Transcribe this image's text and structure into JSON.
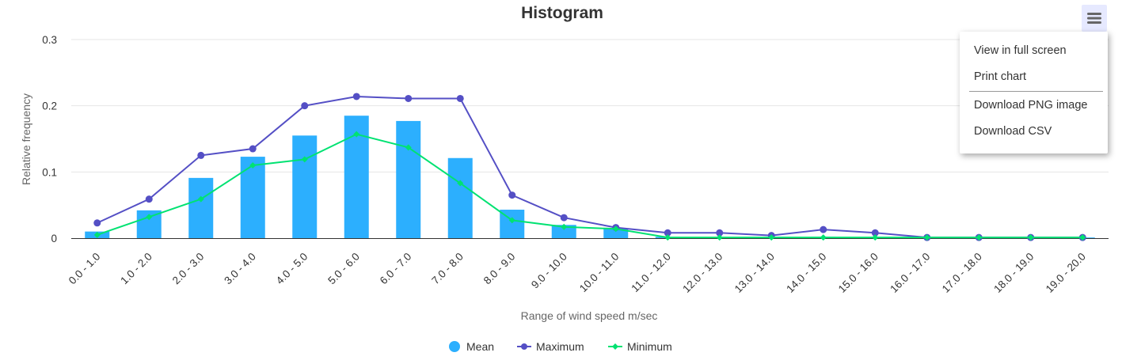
{
  "chart_data": {
    "type": "bar",
    "title": "Histogram",
    "xlabel": "Range of wind speed m/sec",
    "ylabel": "Relative frequency",
    "ylim": [
      0,
      0.3
    ],
    "yticks": [
      0,
      0.1,
      0.2,
      0.3
    ],
    "ytick_labels": [
      "0",
      "0.1",
      "0.2",
      "0.3"
    ],
    "grid": true,
    "legend_position": "bottom-center",
    "categories": [
      "0.0 - 1.0",
      "1.0 - 2.0",
      "2.0 - 3.0",
      "3.0 - 4.0",
      "4.0 - 5.0",
      "5.0 - 6.0",
      "6.0 - 7.0",
      "7.0 - 8.0",
      "8.0 - 9.0",
      "9.0 - 10.0",
      "10.0 - 11.0",
      "11.0 - 12.0",
      "12.0 - 13.0",
      "13.0 - 14.0",
      "14.0 - 15.0",
      "15.0 - 16.0",
      "16.0 - 17.0",
      "17.0 - 18.0",
      "18.0 - 19.0",
      "19.0 - 20.0"
    ],
    "series": [
      {
        "name": "Mean",
        "type": "bar",
        "color": "#2caffe",
        "values": [
          0.01,
          0.042,
          0.091,
          0.123,
          0.155,
          0.185,
          0.177,
          0.121,
          0.043,
          0.02,
          0.014,
          0.002,
          0.001,
          0.001,
          0.002,
          0.001,
          0.001,
          0.001,
          0.001,
          0.001
        ]
      },
      {
        "name": "Maximum",
        "type": "line",
        "marker": "circle",
        "color": "#544fc5",
        "values": [
          0.023,
          0.059,
          0.125,
          0.135,
          0.2,
          0.214,
          0.211,
          0.211,
          0.065,
          0.031,
          0.016,
          0.008,
          0.008,
          0.004,
          0.013,
          0.008,
          0.001,
          0.001,
          0.001,
          0.001
        ]
      },
      {
        "name": "Minimum",
        "type": "line",
        "marker": "diamond",
        "color": "#00e272",
        "values": [
          0.005,
          0.032,
          0.059,
          0.11,
          0.119,
          0.157,
          0.137,
          0.083,
          0.027,
          0.017,
          0.014,
          0.001,
          0.001,
          0.001,
          0.001,
          0.001,
          0.001,
          0.001,
          0.001,
          0.001
        ]
      }
    ]
  },
  "menu": {
    "icon": "hamburger-icon",
    "items": [
      "View in full screen",
      "Print chart",
      "Download PNG image",
      "Download CSV"
    ]
  }
}
